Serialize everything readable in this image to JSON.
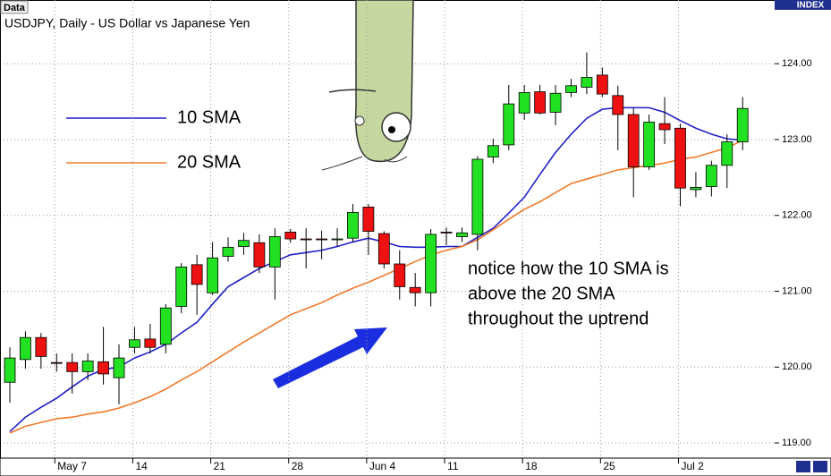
{
  "chart_data": {
    "type": "candlestick",
    "title": "USDJPY, Daily - US Dollar vs Japanese Yen",
    "panel_label": "Data",
    "axis_header": "INDEX",
    "annotation": [
      "notice how the 10 SMA is",
      "above the 20 SMA",
      "throughout the uptrend"
    ],
    "categories": [
      null,
      null,
      null,
      "May 7",
      null,
      null,
      null,
      null,
      "14",
      null,
      null,
      null,
      null,
      "21",
      null,
      null,
      null,
      null,
      "28",
      null,
      null,
      null,
      null,
      "Jun 4",
      null,
      null,
      null,
      null,
      "11",
      null,
      null,
      null,
      null,
      "18",
      null,
      null,
      null,
      null,
      "25",
      null,
      null,
      null,
      null,
      "Jul 2",
      null,
      null,
      null,
      null
    ],
    "open": [
      119.8,
      120.1,
      120.39,
      120.06,
      120.06,
      119.94,
      120.07,
      119.86,
      120.26,
      120.37,
      120.3,
      120.8,
      121.35,
      120.98,
      121.46,
      121.59,
      121.64,
      121.32,
      121.78,
      121.69,
      121.69,
      121.69,
      121.7,
      122.11,
      121.76,
      121.36,
      121.05,
      120.98,
      121.78,
      121.72,
      121.75,
      122.77,
      122.93,
      123.35,
      123.63,
      123.36,
      123.62,
      123.69,
      123.85,
      123.58,
      123.33,
      122.64,
      123.21,
      123.15,
      122.34,
      122.38,
      122.66,
      122.97
    ],
    "high": [
      120.26,
      120.47,
      120.45,
      120.18,
      120.18,
      120.18,
      120.53,
      120.3,
      120.53,
      120.57,
      120.83,
      121.37,
      121.48,
      121.65,
      121.71,
      121.77,
      121.75,
      121.83,
      121.82,
      121.83,
      121.8,
      121.83,
      122.15,
      122.15,
      121.79,
      121.54,
      121.24,
      121.82,
      121.84,
      121.84,
      122.78,
      123.01,
      123.72,
      123.72,
      123.72,
      123.72,
      123.8,
      124.15,
      123.95,
      123.71,
      123.42,
      123.33,
      123.56,
      123.21,
      122.57,
      122.72,
      123.07,
      123.56
    ],
    "low": [
      119.53,
      119.98,
      119.98,
      119.94,
      119.65,
      119.83,
      119.77,
      119.51,
      120.18,
      120.18,
      120.18,
      120.71,
      120.69,
      120.95,
      121.39,
      121.48,
      121.24,
      120.89,
      121.64,
      121.3,
      121.42,
      121.59,
      121.65,
      121.48,
      121.3,
      120.89,
      120.8,
      120.8,
      121.61,
      121.65,
      121.54,
      122.69,
      122.86,
      123.26,
      123.33,
      123.19,
      123.56,
      123.6,
      123.56,
      122.86,
      122.24,
      122.6,
      122.94,
      122.12,
      122.24,
      122.25,
      122.36,
      122.86
    ],
    "close": [
      120.12,
      120.39,
      120.14,
      120.05,
      119.94,
      120.08,
      119.91,
      120.12,
      120.36,
      120.26,
      120.78,
      121.32,
      121.09,
      121.44,
      121.58,
      121.67,
      121.32,
      121.72,
      121.69,
      121.68,
      121.68,
      121.69,
      122.04,
      121.79,
      121.36,
      121.06,
      120.98,
      121.75,
      121.77,
      121.77,
      122.74,
      122.92,
      123.47,
      123.62,
      123.35,
      123.61,
      123.71,
      123.82,
      123.6,
      123.33,
      122.64,
      123.23,
      123.13,
      122.36,
      122.37,
      122.66,
      122.97,
      123.41
    ],
    "up_color": "#22e022",
    "down_color": "#ee1111",
    "series": [
      {
        "name": "10 SMA",
        "color": "#1f1fc8",
        "values": [
          119.15,
          119.34,
          119.47,
          119.59,
          119.74,
          119.88,
          119.97,
          120.0,
          120.12,
          120.2,
          120.3,
          120.45,
          120.59,
          120.83,
          121.06,
          121.18,
          121.3,
          121.39,
          121.48,
          121.51,
          121.54,
          121.59,
          121.65,
          121.7,
          121.65,
          121.59,
          121.58,
          121.58,
          121.59,
          121.59,
          121.71,
          121.83,
          122.03,
          122.24,
          122.54,
          122.83,
          123.07,
          123.28,
          123.4,
          123.42,
          123.42,
          123.42,
          123.36,
          123.25,
          123.15,
          123.07,
          123.01,
          122.99
        ]
      },
      {
        "name": "20 SMA",
        "color": "#f07a2a",
        "values": [
          119.13,
          119.22,
          119.27,
          119.32,
          119.34,
          119.38,
          119.41,
          119.46,
          119.53,
          119.61,
          119.71,
          119.83,
          119.94,
          120.07,
          120.2,
          120.33,
          120.45,
          120.57,
          120.69,
          120.77,
          120.85,
          120.95,
          121.04,
          121.12,
          121.21,
          121.3,
          121.39,
          121.48,
          121.54,
          121.59,
          121.68,
          121.81,
          121.95,
          122.08,
          122.18,
          122.3,
          122.42,
          122.48,
          122.54,
          122.6,
          122.63,
          122.66,
          122.69,
          122.74,
          122.77,
          122.83,
          122.89,
          122.99
        ]
      }
    ],
    "ylim": [
      118.8,
      124.84
    ],
    "yticks": [
      {
        "value": 119,
        "label": "119.00"
      },
      {
        "value": 120,
        "label": "120.00"
      },
      {
        "value": 121,
        "label": "121.00"
      },
      {
        "value": 122,
        "label": "122.00"
      },
      {
        "value": 123,
        "label": "123.00"
      },
      {
        "value": 124,
        "label": "124.00"
      }
    ],
    "grid": true
  }
}
